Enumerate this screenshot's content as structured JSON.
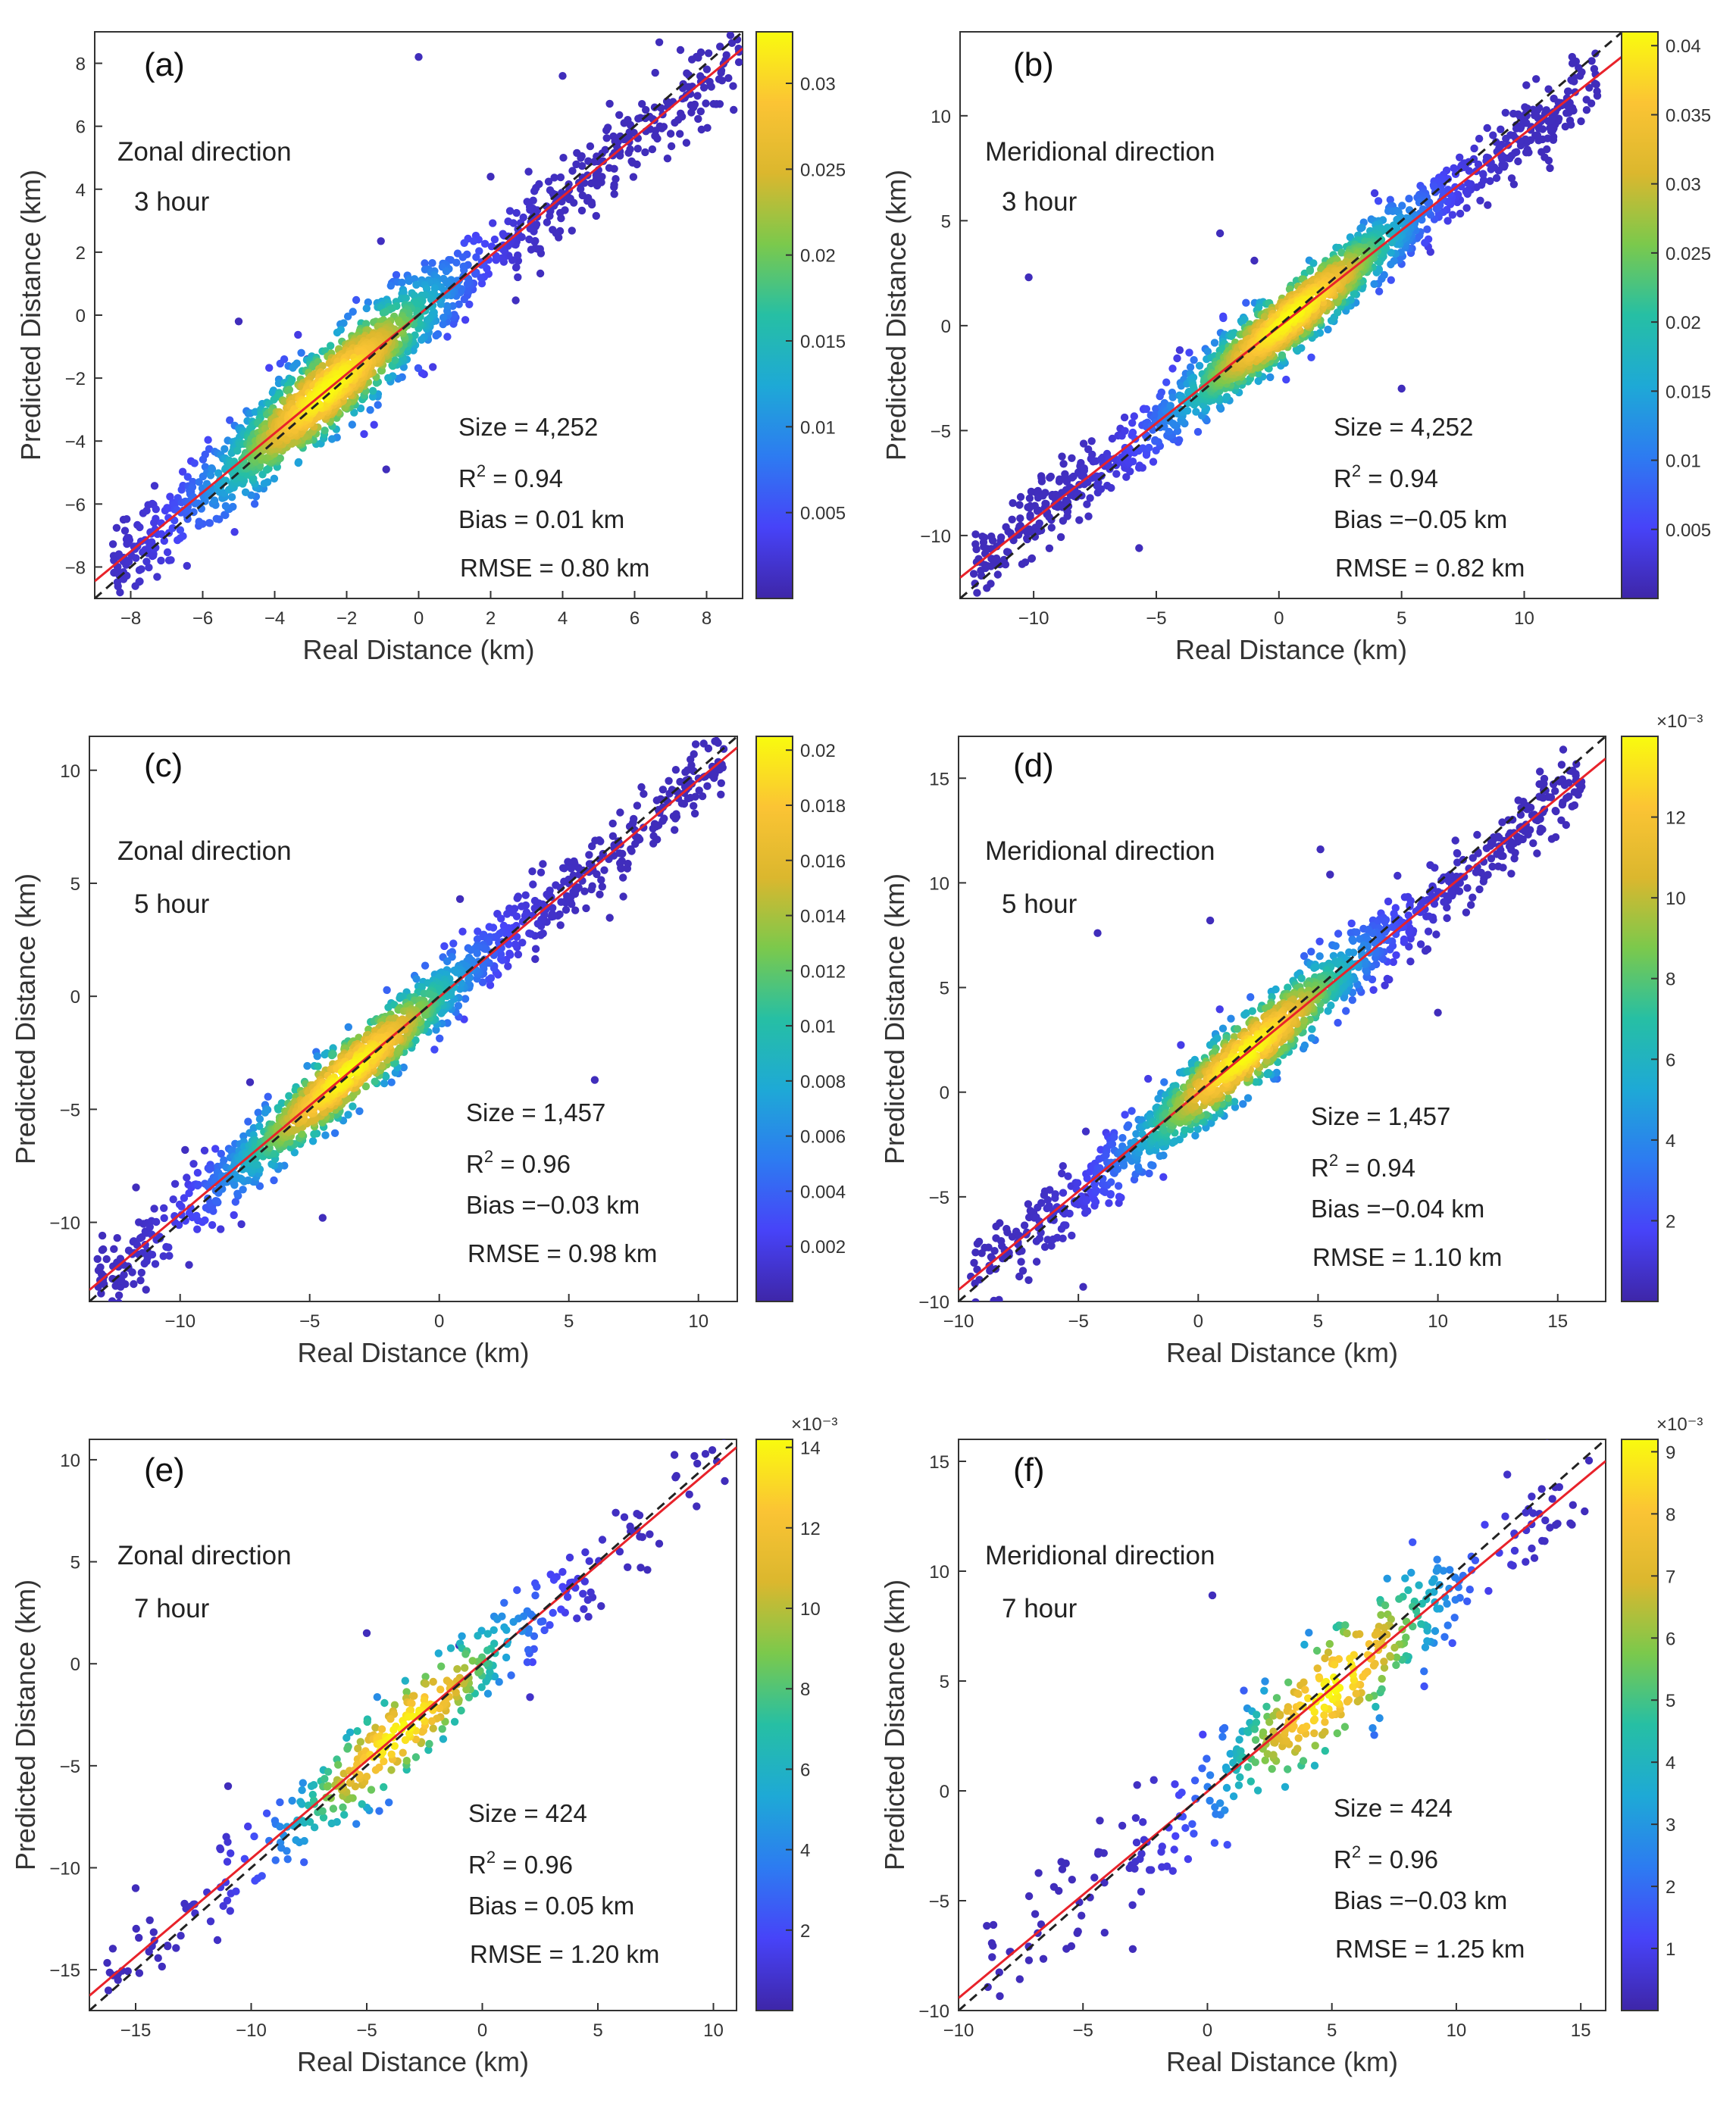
{
  "figure": {
    "xlabel": "Real Distance (km)",
    "ylabel": "Predicted Distance (km)",
    "legend": "none",
    "colors": {
      "fit_line": "#e8222a",
      "identity_line": "#222222",
      "colormap_stops": [
        "#3e26a8",
        "#4743f8",
        "#2d7bf1",
        "#1ea9d6",
        "#26bfa4",
        "#7bc94c",
        "#dbb72e",
        "#fbc434",
        "#f9fb0e"
      ]
    }
  },
  "chart_data": [
    {
      "type": "scatter",
      "panel": "(a)",
      "title": "(a)",
      "direction": "Zonal direction",
      "horizon": "3 hour",
      "xlabel": "Real Distance (km)",
      "ylabel": "Predicted Distance (km)",
      "xlim": [
        -9,
        9
      ],
      "ylim": [
        -9,
        9
      ],
      "xticks": [
        -8,
        -6,
        -4,
        -2,
        0,
        2,
        4,
        6,
        8
      ],
      "yticks": [
        -8,
        -6,
        -4,
        -2,
        0,
        2,
        4,
        6,
        8
      ],
      "xticklabels": [
        "−8",
        "−6",
        "−4",
        "−2",
        "0",
        "2",
        "4",
        "6",
        "8"
      ],
      "yticklabels": [
        "−8",
        "−6",
        "−4",
        "−2",
        "0",
        "2",
        "4",
        "6",
        "8"
      ],
      "fit_line": {
        "slope": 0.94,
        "intercept": 0.01
      },
      "identity_line": {
        "slope": 1,
        "intercept": 0
      },
      "colorbar": {
        "range": [
          0.0,
          0.033
        ],
        "ticks": [
          0.005,
          0.01,
          0.015,
          0.02,
          0.025,
          0.03
        ],
        "ticklabels": [
          "0.005",
          "0.01",
          "0.015",
          "0.02",
          "0.025",
          "0.03"
        ],
        "exponent": ""
      },
      "stats": {
        "size": "Size = 4,252",
        "r2_prefix": "R",
        "r2_value": " = 0.94",
        "bias": "Bias = 0.01 km",
        "rmse": "RMSE = 0.80 km"
      },
      "points_summary": {
        "n": 4252,
        "x_range": [
          -8.5,
          8.9
        ],
        "core_center": -2.5,
        "spread_sd": 0.7
      },
      "outliers": [
        [
          0.0,
          8.2
        ],
        [
          -5.0,
          -0.2
        ],
        [
          -3.1,
          -1.4
        ],
        [
          -0.9,
          -4.9
        ],
        [
          -1.8,
          -2.6
        ],
        [
          4.0,
          7.6
        ],
        [
          2.0,
          4.4
        ],
        [
          6.7,
          6.0
        ]
      ]
    },
    {
      "type": "scatter",
      "panel": "(b)",
      "title": "(b)",
      "direction": "Meridional direction",
      "horizon": "3 hour",
      "xlabel": "Real Distance (km)",
      "ylabel": "Predicted Distance (km)",
      "xlim": [
        -13,
        14
      ],
      "ylim": [
        -13,
        14
      ],
      "xticks": [
        -10,
        -5,
        0,
        5,
        10
      ],
      "yticks": [
        -10,
        -5,
        0,
        5,
        10
      ],
      "xticklabels": [
        "−10",
        "−5",
        "0",
        "5",
        "10"
      ],
      "yticklabels": [
        "−10",
        "−5",
        "0",
        "5",
        "10"
      ],
      "fit_line": {
        "slope": 0.92,
        "intercept": -0.05
      },
      "identity_line": {
        "slope": 1,
        "intercept": 0
      },
      "colorbar": {
        "range": [
          0.0,
          0.041
        ],
        "ticks": [
          0.005,
          0.01,
          0.015,
          0.02,
          0.025,
          0.03,
          0.035,
          0.04
        ],
        "ticklabels": [
          "0.005",
          "0.01",
          "0.015",
          "0.02",
          "0.025",
          "0.03",
          "0.035",
          "0.04"
        ],
        "exponent": ""
      },
      "stats": {
        "size": "Size = 4,252",
        "r2_prefix": "R",
        "r2_value": " = 0.94",
        "bias": "Bias =−0.05 km",
        "rmse": "RMSE = 0.82 km"
      },
      "points_summary": {
        "n": 4252,
        "x_range": [
          -12.5,
          13.0
        ],
        "core_center": 0.5,
        "spread_sd": 0.85
      },
      "outliers": [
        [
          -10.2,
          2.3
        ],
        [
          -2.4,
          4.4
        ],
        [
          5.0,
          -3.0
        ],
        [
          -1.0,
          3.1
        ],
        [
          -5.7,
          -10.6
        ],
        [
          11.2,
          9.4
        ]
      ]
    },
    {
      "type": "scatter",
      "panel": "(c)",
      "title": "(c)",
      "direction": "Zonal direction",
      "horizon": "5 hour",
      "xlabel": "Real Distance (km)",
      "ylabel": "Predicted Distance (km)",
      "xlim": [
        -13.5,
        11.5
      ],
      "ylim": [
        -13.5,
        11.5
      ],
      "xticks": [
        -10,
        -5,
        0,
        5,
        10
      ],
      "yticks": [
        -10,
        -5,
        0,
        5,
        10
      ],
      "xticklabels": [
        "−10",
        "−5",
        "0",
        "5",
        "10"
      ],
      "yticklabels": [
        "−10",
        "−5",
        "0",
        "5",
        "10"
      ],
      "fit_line": {
        "slope": 0.96,
        "intercept": -0.03
      },
      "identity_line": {
        "slope": 1,
        "intercept": 0
      },
      "colorbar": {
        "range": [
          0.0,
          0.0205
        ],
        "ticks": [
          0.002,
          0.004,
          0.006,
          0.008,
          0.01,
          0.012,
          0.014,
          0.016,
          0.018,
          0.02
        ],
        "ticklabels": [
          "0.002",
          "0.004",
          "0.006",
          "0.008",
          "0.01",
          "0.012",
          "0.014",
          "0.016",
          "0.018",
          "0.02"
        ],
        "exponent": ""
      },
      "stats": {
        "size": "Size = 1,457",
        "r2_prefix": "R",
        "r2_value": " = 0.96",
        "bias": "Bias =−0.03 km",
        "rmse": "RMSE = 0.98 km"
      },
      "points_summary": {
        "n": 1457,
        "x_range": [
          -13.2,
          11.0
        ],
        "core_center": -3.5,
        "spread_sd": 0.8
      },
      "outliers": [
        [
          -4.5,
          -9.8
        ],
        [
          6.0,
          -3.7
        ],
        [
          0.8,
          4.3
        ],
        [
          -7.3,
          -3.8
        ]
      ]
    },
    {
      "type": "scatter",
      "panel": "(d)",
      "title": "(d)",
      "direction": "Meridional direction",
      "horizon": "5 hour",
      "xlabel": "Real Distance (km)",
      "ylabel": "Predicted Distance (km)",
      "xlim": [
        -10,
        17
      ],
      "ylim": [
        -10,
        17
      ],
      "xticks": [
        -10,
        -5,
        0,
        5,
        10,
        15
      ],
      "yticks": [
        -10,
        -5,
        0,
        5,
        10,
        15
      ],
      "xticklabels": [
        "−10",
        "−5",
        "0",
        "5",
        "10",
        "15"
      ],
      "yticklabels": [
        "−10",
        "−5",
        "0",
        "5",
        "10",
        "15"
      ],
      "fit_line": {
        "slope": 0.94,
        "intercept": -0.04
      },
      "identity_line": {
        "slope": 1,
        "intercept": 0
      },
      "colorbar": {
        "range": [
          0.0,
          14.0
        ],
        "ticks": [
          2,
          4,
          6,
          8,
          10,
          12
        ],
        "ticklabels": [
          "2",
          "4",
          "6",
          "8",
          "10",
          "12"
        ],
        "exponent": "×10⁻³"
      },
      "stats": {
        "size": "Size = 1,457",
        "r2_prefix": "R",
        "r2_value": " = 0.94",
        "bias": "Bias =−0.04 km",
        "rmse": "RMSE = 1.10 km"
      },
      "points_summary": {
        "n": 1457,
        "x_range": [
          -9.5,
          16.0
        ],
        "core_center": 2.0,
        "spread_sd": 0.9
      },
      "outliers": [
        [
          -4.2,
          7.6
        ],
        [
          5.1,
          11.6
        ],
        [
          0.5,
          8.2
        ],
        [
          10.0,
          3.8
        ],
        [
          -4.8,
          -9.3
        ],
        [
          -4.7,
          -5.0
        ],
        [
          5.5,
          10.4
        ]
      ]
    },
    {
      "type": "scatter",
      "panel": "(e)",
      "title": "(e)",
      "direction": "Zonal direction",
      "horizon": "7 hour",
      "xlabel": "Real Distance (km)",
      "ylabel": "Predicted Distance (km)",
      "xlim": [
        -17,
        11
      ],
      "ylim": [
        -17,
        11
      ],
      "xticks": [
        -15,
        -10,
        -5,
        0,
        5,
        10
      ],
      "yticks": [
        -15,
        -10,
        -5,
        0,
        5,
        10
      ],
      "xticklabels": [
        "−15",
        "−10",
        "−5",
        "0",
        "5",
        "10"
      ],
      "yticklabels": [
        "−15",
        "−10",
        "−5",
        "0",
        "5",
        "10"
      ],
      "fit_line": {
        "slope": 0.96,
        "intercept": 0.05
      },
      "identity_line": {
        "slope": 1,
        "intercept": 0
      },
      "colorbar": {
        "range": [
          0.0,
          14.2
        ],
        "ticks": [
          2,
          4,
          6,
          8,
          10,
          12,
          14
        ],
        "ticklabels": [
          "2",
          "4",
          "6",
          "8",
          "10",
          "12",
          "14"
        ],
        "exponent": "×10⁻³"
      },
      "stats": {
        "size": "Size = 424",
        "r2_prefix": "R",
        "r2_value": " = 0.96",
        "bias": "Bias = 0.05 km",
        "rmse": "RMSE = 1.20 km"
      },
      "points_summary": {
        "n": 424,
        "x_range": [
          -16.5,
          10.5
        ],
        "core_center": -3.5,
        "spread_sd": 1.1
      },
      "outliers": [
        [
          -5.0,
          1.5
        ],
        [
          -1.0,
          0.9
        ],
        [
          -11.0,
          -6.0
        ],
        [
          -15.0,
          -11.0
        ]
      ]
    },
    {
      "type": "scatter",
      "panel": "(f)",
      "title": "(f)",
      "direction": "Meridional direction",
      "horizon": "7 hour",
      "xlabel": "Real Distance (km)",
      "ylabel": "Predicted Distance (km)",
      "xlim": [
        -10,
        16
      ],
      "ylim": [
        -10,
        16
      ],
      "xticks": [
        -10,
        -5,
        0,
        5,
        10,
        15
      ],
      "yticks": [
        -10,
        -5,
        0,
        5,
        10,
        15
      ],
      "xticklabels": [
        "−10",
        "−5",
        "0",
        "5",
        "10",
        "15"
      ],
      "yticklabels": [
        "−10",
        "−5",
        "0",
        "5",
        "10",
        "15"
      ],
      "fit_line": {
        "slope": 0.94,
        "intercept": -0.03
      },
      "identity_line": {
        "slope": 1,
        "intercept": 0
      },
      "colorbar": {
        "range": [
          0.0,
          9.2
        ],
        "ticks": [
          1,
          2,
          3,
          4,
          5,
          6,
          7,
          8,
          9
        ],
        "ticklabels": [
          "1",
          "2",
          "3",
          "4",
          "5",
          "6",
          "7",
          "8",
          "9"
        ],
        "exponent": "×10⁻³"
      },
      "stats": {
        "size": "Size = 424",
        "r2_prefix": "R",
        "r2_value": " = 0.96",
        "bias": "Bias =−0.03 km",
        "rmse": "RMSE = 1.25 km"
      },
      "points_summary": {
        "n": 424,
        "x_range": [
          -9.0,
          15.5
        ],
        "core_center": 5.0,
        "spread_sd": 1.4
      },
      "outliers": [
        [
          0.2,
          8.9
        ],
        [
          -3.0,
          -7.2
        ],
        [
          -8.6,
          -6.1
        ]
      ]
    }
  ]
}
